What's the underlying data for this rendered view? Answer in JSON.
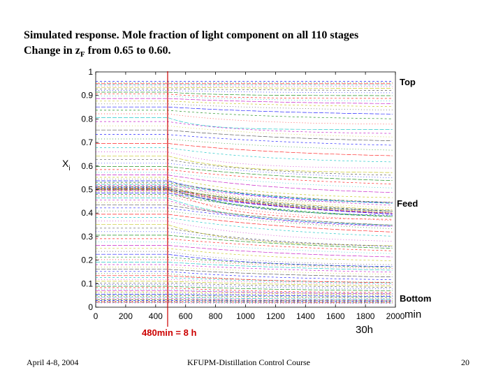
{
  "slide": {
    "title_line1": "Simulated response. Mole fraction of light component on all 110 stages",
    "title_line2_prefix": "Change in z",
    "title_line2_sub": "F",
    "title_line2_suffix": " from 0.65 to 0.60."
  },
  "footer": {
    "date": "April 4-8, 2004",
    "course": "KFUPM-Distillation Control Course",
    "page": "20"
  },
  "chart_data": {
    "type": "line",
    "title": "",
    "ylabel": "X",
    "ylabel_sub": "i",
    "xlabel": "min",
    "xlim": [
      0,
      2000
    ],
    "ylim": [
      0,
      1
    ],
    "xticks": [
      0,
      200,
      400,
      600,
      800,
      1000,
      1200,
      1400,
      1600,
      1800,
      2000
    ],
    "yticks": [
      0,
      0.1,
      0.2,
      0.3,
      0.4,
      0.5,
      0.6,
      0.7,
      0.8,
      0.9,
      1
    ],
    "grid": false,
    "n_stages": 110,
    "step_time_min": 480,
    "end_label": "30h",
    "annotations": {
      "top": "Top",
      "feed": "Feed",
      "bottom": "Bottom",
      "step": "480min = 8 h"
    },
    "colors": [
      "#0000ff",
      "#008000",
      "#ff0000",
      "#00bfbf",
      "#bf00bf",
      "#bfbf00",
      "#404040"
    ],
    "step_line_color": "#cc0000",
    "initial_profile": [
      0.96,
      0.955,
      0.95,
      0.945,
      0.94,
      0.934,
      0.928,
      0.921,
      0.914,
      0.906,
      0.897,
      0.887,
      0.876,
      0.864,
      0.851,
      0.837,
      0.822,
      0.806,
      0.789,
      0.771,
      0.753,
      0.734,
      0.715,
      0.696,
      0.678,
      0.66,
      0.643,
      0.627,
      0.612,
      0.598,
      0.585,
      0.573,
      0.562,
      0.552,
      0.544,
      0.537,
      0.531,
      0.526,
      0.522,
      0.518,
      0.515,
      0.512,
      0.51,
      0.508,
      0.506,
      0.505,
      0.504,
      0.503,
      0.502,
      0.502,
      0.501,
      0.5,
      0.499,
      0.497,
      0.494,
      0.49,
      0.485,
      0.479,
      0.472,
      0.464,
      0.455,
      0.445,
      0.434,
      0.422,
      0.409,
      0.395,
      0.381,
      0.366,
      0.351,
      0.336,
      0.321,
      0.306,
      0.291,
      0.277,
      0.263,
      0.25,
      0.237,
      0.225,
      0.213,
      0.202,
      0.191,
      0.181,
      0.171,
      0.161,
      0.152,
      0.143,
      0.134,
      0.126,
      0.118,
      0.11,
      0.103,
      0.096,
      0.089,
      0.083,
      0.077,
      0.071,
      0.065,
      0.06,
      0.055,
      0.05,
      0.046,
      0.042,
      0.038,
      0.034,
      0.031,
      0.028,
      0.025,
      0.022,
      0.02,
      0.018
    ],
    "final_profile": [
      0.96,
      0.955,
      0.95,
      0.944,
      0.937,
      0.929,
      0.92,
      0.91,
      0.899,
      0.887,
      0.874,
      0.86,
      0.845,
      0.829,
      0.812,
      0.794,
      0.775,
      0.755,
      0.735,
      0.714,
      0.693,
      0.672,
      0.651,
      0.63,
      0.609,
      0.589,
      0.57,
      0.551,
      0.533,
      0.516,
      0.5,
      0.485,
      0.471,
      0.458,
      0.446,
      0.435,
      0.425,
      0.416,
      0.408,
      0.401,
      0.395,
      0.39,
      0.386,
      0.383,
      0.38,
      0.378,
      0.376,
      0.375,
      0.374,
      0.373,
      0.372,
      0.371,
      0.37,
      0.368,
      0.366,
      0.363,
      0.359,
      0.354,
      0.348,
      0.342,
      0.335,
      0.327,
      0.318,
      0.309,
      0.299,
      0.289,
      0.279,
      0.268,
      0.258,
      0.247,
      0.236,
      0.226,
      0.215,
      0.205,
      0.195,
      0.185,
      0.176,
      0.167,
      0.158,
      0.149,
      0.141,
      0.133,
      0.125,
      0.118,
      0.111,
      0.104,
      0.098,
      0.092,
      0.086,
      0.08,
      0.075,
      0.07,
      0.065,
      0.06,
      0.056,
      0.052,
      0.048,
      0.044,
      0.041,
      0.038,
      0.035,
      0.032,
      0.029,
      0.027,
      0.025,
      0.023,
      0.021,
      0.019,
      0.017,
      0.015
    ]
  }
}
